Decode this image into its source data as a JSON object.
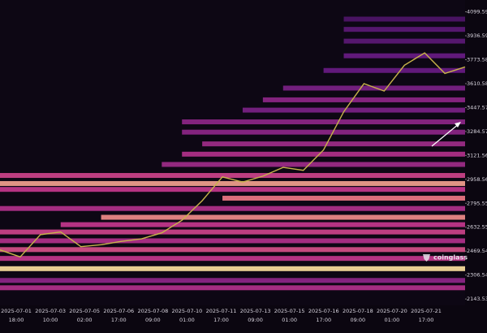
{
  "chart_data": {
    "type": "heatmap",
    "watermark": "coinglass",
    "ylim": [
      2100,
      4180
    ],
    "yticks": [
      2143.539,
      2306.544,
      2469.549,
      2632.554,
      2795.559,
      2958.564,
      3121.569,
      3284.574,
      3447.579,
      3610.584,
      3773.589,
      3936.594,
      4099.599
    ],
    "x_labels": [
      {
        "date": "2025-07-01",
        "time": "18:00"
      },
      {
        "date": "2025-07-03",
        "time": "10:00"
      },
      {
        "date": "2025-07-05",
        "time": "02:00"
      },
      {
        "date": "2025-07-06",
        "time": "17:00"
      },
      {
        "date": "2025-07-08",
        "time": "09:00"
      },
      {
        "date": "2025-07-10",
        "time": "01:00"
      },
      {
        "date": "2025-07-11",
        "time": "17:00"
      },
      {
        "date": "2025-07-13",
        "time": "09:00"
      },
      {
        "date": "2025-07-15",
        "time": "01:00"
      },
      {
        "date": "2025-07-16",
        "time": "17:00"
      },
      {
        "date": "2025-07-18",
        "time": "09:00"
      },
      {
        "date": "2025-07-20",
        "time": "01:00"
      },
      {
        "date": "2025-07-21",
        "time": "17:00"
      }
    ],
    "price": {
      "color": "#c8b44a",
      "values": [
        2478,
        2430,
        2582,
        2600,
        2500,
        2513,
        2536,
        2553,
        2594,
        2680,
        2813,
        2975,
        2940,
        2980,
        3040,
        3020,
        3159,
        3419,
        3610,
        3560,
        3736,
        3820,
        3680,
        3724
      ]
    },
    "colorscale": [
      "#2a0b40",
      "#6a1c86",
      "#c8388f",
      "#f27a86",
      "#ffe3a0"
    ],
    "bands": [
      {
        "price": 2350,
        "start": 0,
        "intensity": 1
      },
      {
        "price": 2220,
        "start": 0,
        "intensity": 0.45
      },
      {
        "price": 2270,
        "start": 0,
        "intensity": 0.35
      },
      {
        "price": 2420,
        "start": 0,
        "intensity": 0.5
      },
      {
        "price": 2480,
        "start": 0,
        "intensity": 0.6
      },
      {
        "price": 2540,
        "start": 0,
        "intensity": 0.45
      },
      {
        "price": 2600,
        "start": 0,
        "intensity": 0.55
      },
      {
        "price": 2650,
        "start": 3,
        "intensity": 0.5
      },
      {
        "price": 2700,
        "start": 5,
        "intensity": 0.8
      },
      {
        "price": 2760,
        "start": 0,
        "intensity": 0.45
      },
      {
        "price": 2830,
        "start": 11,
        "intensity": 0.75
      },
      {
        "price": 2890,
        "start": 0,
        "intensity": 0.5
      },
      {
        "price": 2930,
        "start": 0,
        "intensity": 0.85
      },
      {
        "price": 2985,
        "start": 0,
        "intensity": 0.55
      },
      {
        "price": 3060,
        "start": 8,
        "intensity": 0.4
      },
      {
        "price": 3130,
        "start": 9,
        "intensity": 0.45
      },
      {
        "price": 3200,
        "start": 10,
        "intensity": 0.4
      },
      {
        "price": 3280,
        "start": 9,
        "intensity": 0.35
      },
      {
        "price": 3350,
        "start": 9,
        "intensity": 0.35
      },
      {
        "price": 3430,
        "start": 12,
        "intensity": 0.3
      },
      {
        "price": 3500,
        "start": 13,
        "intensity": 0.35
      },
      {
        "price": 3580,
        "start": 14,
        "intensity": 0.3
      },
      {
        "price": 3700,
        "start": 16,
        "intensity": 0.25
      },
      {
        "price": 3800,
        "start": 17,
        "intensity": 0.25
      },
      {
        "price": 3900,
        "start": 17,
        "intensity": 0.2
      },
      {
        "price": 3980,
        "start": 17,
        "intensity": 0.2
      },
      {
        "price": 4050,
        "start": 17,
        "intensity": 0.15
      }
    ]
  }
}
